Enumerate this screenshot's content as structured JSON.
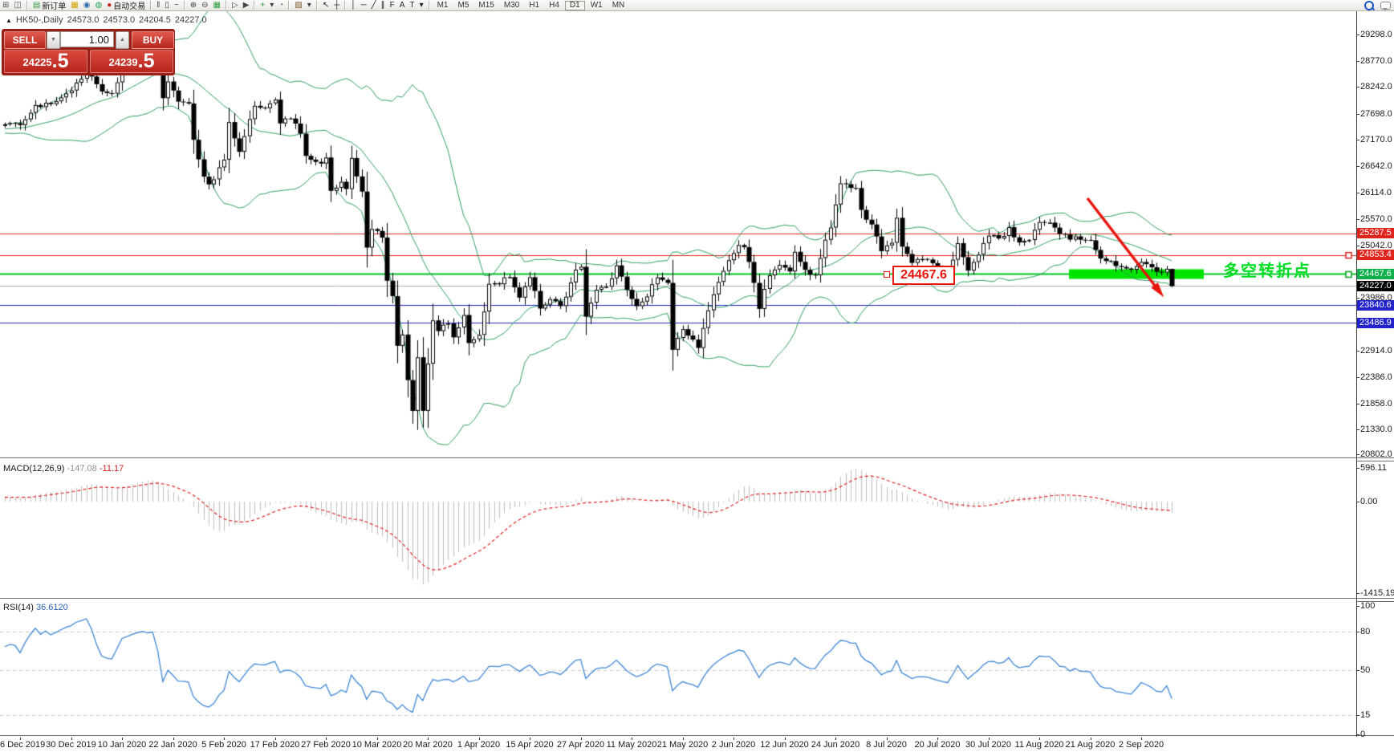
{
  "toolbar": {
    "timeframes": [
      "M1",
      "M5",
      "M15",
      "M30",
      "H1",
      "H4",
      "D1",
      "W1",
      "MN"
    ],
    "active_timeframe": "D1",
    "new_order_label": "新订单",
    "autotrading_label": "自动交易",
    "groups": [
      {
        "name": "file",
        "items": [
          {
            "icon": "new-chart-icon",
            "glyph": "⊞",
            "color": "#555555"
          },
          {
            "icon": "profiles-icon",
            "glyph": "◫",
            "color": "#555555"
          }
        ]
      },
      {
        "name": "trade",
        "items": [
          {
            "icon": "new-order-icon",
            "glyph": "▤",
            "color": "#2f9e44",
            "label_key": "new_order_label"
          },
          {
            "icon": "market-watch-icon",
            "glyph": "▦",
            "color": "#d9a400"
          },
          {
            "icon": "navigator-icon",
            "glyph": "◉",
            "color": "#2b6cb0"
          },
          {
            "icon": "signals-icon",
            "glyph": "◍",
            "color": "#23a455"
          },
          {
            "icon": "autotrading-icon",
            "glyph": "●",
            "color": "#cc2222",
            "label_key": "autotrading_label"
          }
        ]
      },
      {
        "name": "chart-mode",
        "items": [
          {
            "icon": "bar-chart-icon",
            "glyph": "‖",
            "color": "#444444"
          },
          {
            "icon": "candlestick-chart-icon",
            "glyph": "▯",
            "color": "#444444"
          },
          {
            "icon": "line-chart-icon",
            "glyph": "~",
            "color": "#444444"
          }
        ]
      },
      {
        "name": "zoom",
        "items": [
          {
            "icon": "zoom-in-icon",
            "glyph": "⊕",
            "color": "#444444"
          },
          {
            "icon": "zoom-out-icon",
            "glyph": "⊖",
            "color": "#444444"
          },
          {
            "icon": "tile-windows-icon",
            "glyph": "▦",
            "color": "#2f9e44"
          }
        ]
      },
      {
        "name": "shift",
        "items": [
          {
            "icon": "auto-scroll-icon",
            "glyph": "▷",
            "color": "#444444"
          },
          {
            "icon": "chart-shift-icon",
            "glyph": "▶",
            "color": "#444444"
          }
        ]
      },
      {
        "name": "indicators",
        "items": [
          {
            "icon": "add-indicator-icon",
            "glyph": "+",
            "color": "#1d9e3f"
          },
          {
            "icon": "indicator-caret-icon",
            "glyph": "▾",
            "color": "#444444"
          },
          {
            "icon": "period-clock-icon",
            "glyph": "◔",
            "color": "#666666"
          }
        ]
      },
      {
        "name": "templates",
        "items": [
          {
            "icon": "templates-icon",
            "glyph": "▨",
            "color": "#7a5c2e"
          },
          {
            "icon": "templates-caret-icon",
            "glyph": "▾",
            "color": "#444444"
          }
        ]
      },
      {
        "name": "pointer",
        "items": [
          {
            "icon": "cursor-icon",
            "glyph": "↖",
            "color": "#222222"
          },
          {
            "icon": "crosshair-icon",
            "glyph": "┼",
            "color": "#222222"
          }
        ]
      },
      {
        "name": "objects",
        "items": [
          {
            "icon": "vertical-line-icon",
            "glyph": "│",
            "color": "#222222"
          },
          {
            "icon": "horizontal-line-icon",
            "glyph": "─",
            "color": "#222222"
          },
          {
            "icon": "trendline-icon",
            "glyph": "╱",
            "color": "#222222"
          },
          {
            "icon": "equidistant-channel-icon",
            "glyph": "∥",
            "color": "#222222"
          },
          {
            "icon": "fibonacci-icon",
            "glyph": "F",
            "color": "#222222"
          },
          {
            "icon": "text-icon",
            "glyph": "A",
            "color": "#222222"
          },
          {
            "icon": "text-label-icon",
            "glyph": "T",
            "color": "#222222"
          },
          {
            "icon": "shapes-caret-icon",
            "glyph": "▾",
            "color": "#222222"
          }
        ]
      }
    ],
    "right_icons": [
      {
        "icon": "search-icon"
      },
      {
        "icon": "chat-icon"
      }
    ]
  },
  "chart": {
    "collapse_icon": "▲",
    "symbol_title": "HK50-,Daily",
    "ohlc": {
      "open": "24573.0",
      "high": "24573.0",
      "low": "24204.5",
      "close": "24227.0"
    },
    "trade_panel": {
      "sell_label": "SELL",
      "buy_label": "BUY",
      "volume": "1.00",
      "spinner_up": "▲",
      "spinner_down": "▼",
      "sell_price": "24225",
      "sell_price_big": ".5",
      "buy_price": "24239",
      "buy_price_big": ".5"
    },
    "price_axis": {
      "ticks": [
        "29298.0",
        "28770.0",
        "28242.0",
        "27698.0",
        "27170.0",
        "26642.0",
        "26114.0",
        "25570.0",
        "25042.0",
        "23986.0",
        "22914.0",
        "22386.0",
        "21858.0",
        "21330.0",
        "20802.0"
      ],
      "tags": [
        {
          "label": "25287.5",
          "color": "#df241c"
        },
        {
          "label": "24853.4",
          "color": "#df241c"
        },
        {
          "label": "24467.6",
          "color": "#0faf4d"
        },
        {
          "label": "24227.0",
          "color": "#000000"
        },
        {
          "label": "23840.6",
          "color": "#2222cc"
        },
        {
          "label": "23486.9",
          "color": "#2222cc"
        }
      ]
    },
    "time_axis": [
      "6 Dec 2019",
      "30 Dec 2019",
      "10 Jan 2020",
      "22 Jan 2020",
      "5 Feb 2020",
      "17 Feb 2020",
      "27 Feb 2020",
      "10 Mar 2020",
      "20 Mar 2020",
      "1 Apr 2020",
      "15 Apr 2020",
      "27 Apr 2020",
      "11 May 2020",
      "21 May 2020",
      "2 Jun 2020",
      "12 Jun 2020",
      "24 Jun 2020",
      "8 Jul 2020",
      "20 Jul 2020",
      "30 Jul 2020",
      "11 Aug 2020",
      "21 Aug 2020",
      "2 Sep 2020"
    ],
    "callout": {
      "text": "24467.6",
      "color": "#e8150d"
    },
    "pivot_annotation": {
      "text": "多空转折点",
      "color": "#00dd22"
    }
  },
  "indicators": {
    "macd": {
      "label": "MACD(12,26,9)",
      "value": "-147.08",
      "signal_value": "-11.17",
      "scale_max": "596.11",
      "scale_zero": "0.00",
      "scale_min": "-1415.19",
      "histogram_color": "#bdbdbd",
      "signal_color": "#e02020",
      "params": {
        "fast": 12,
        "slow": 26,
        "signal": 9
      }
    },
    "rsi": {
      "label": "RSI(14)",
      "value": "36.6120",
      "period": 14,
      "line_color": "#3e86d6",
      "levels": [
        "100",
        "80",
        "50",
        "15",
        "0"
      ],
      "dashed_levels": [
        80,
        50,
        15
      ]
    }
  },
  "chart_data": {
    "type": "candlestick",
    "symbol": "HK50",
    "timeframe": "Daily",
    "title": "HK50-,Daily 24573.0 24573.0 24204.5 24227.0",
    "price_range": {
      "top": 29298.0,
      "bottom": 20802.0
    },
    "bars_total": 230,
    "last_bar": {
      "open": 24573.0,
      "high": 24573.0,
      "low": 24204.5,
      "close": 24227.0
    },
    "close_waypoints": [
      [
        -40,
        26950
      ],
      [
        -25,
        27300
      ],
      [
        -10,
        27380
      ],
      [
        0,
        27450
      ],
      [
        3,
        27510
      ],
      [
        6,
        27850
      ],
      [
        10,
        27950
      ],
      [
        13,
        28190
      ],
      [
        16,
        28540
      ],
      [
        19,
        28180
      ],
      [
        21,
        28090
      ],
      [
        23,
        28640
      ],
      [
        26,
        28950
      ],
      [
        29,
        29000
      ],
      [
        30,
        28800
      ],
      [
        31,
        27990
      ],
      [
        32,
        28340
      ],
      [
        34,
        27910
      ],
      [
        36,
        27950
      ],
      [
        37,
        27160
      ],
      [
        39,
        26450
      ],
      [
        40,
        26310
      ],
      [
        41,
        26360
      ],
      [
        43,
        26790
      ],
      [
        44,
        27490
      ],
      [
        46,
        26960
      ],
      [
        48,
        27580
      ],
      [
        49,
        27820
      ],
      [
        51,
        27820
      ],
      [
        53,
        27960
      ],
      [
        54,
        27530
      ],
      [
        56,
        27610
      ],
      [
        58,
        27310
      ],
      [
        59,
        26820
      ],
      [
        61,
        26700
      ],
      [
        63,
        26780
      ],
      [
        64,
        26130
      ],
      [
        66,
        26290
      ],
      [
        67,
        26220
      ],
      [
        68,
        26770
      ],
      [
        70,
        26150
      ],
      [
        71,
        25040
      ],
      [
        72,
        25390
      ],
      [
        74,
        25230
      ],
      [
        75,
        24310
      ],
      [
        76,
        24030
      ],
      [
        77,
        23060
      ],
      [
        78,
        23260
      ],
      [
        79,
        22290
      ],
      [
        80,
        21710
      ],
      [
        81,
        22800
      ],
      [
        82,
        21700
      ],
      [
        83,
        22660
      ],
      [
        84,
        23530
      ],
      [
        85,
        23350
      ],
      [
        87,
        23480
      ],
      [
        88,
        23180
      ],
      [
        90,
        23600
      ],
      [
        91,
        23090
      ],
      [
        93,
        23240
      ],
      [
        95,
        24250
      ],
      [
        97,
        24300
      ],
      [
        99,
        24435
      ],
      [
        101,
        24010
      ],
      [
        103,
        24380
      ],
      [
        105,
        23790
      ],
      [
        107,
        23980
      ],
      [
        109,
        23830
      ],
      [
        111,
        24280
      ],
      [
        112,
        24580
      ],
      [
        113,
        24640
      ],
      [
        114,
        23610
      ],
      [
        116,
        24140
      ],
      [
        118,
        24230
      ],
      [
        120,
        24600
      ],
      [
        122,
        24180
      ],
      [
        124,
        23830
      ],
      [
        126,
        24060
      ],
      [
        128,
        24400
      ],
      [
        130,
        24280
      ],
      [
        131,
        22930
      ],
      [
        133,
        23380
      ],
      [
        135,
        23130
      ],
      [
        136,
        22960
      ],
      [
        138,
        23730
      ],
      [
        140,
        24330
      ],
      [
        142,
        24770
      ],
      [
        144,
        25060
      ],
      [
        145,
        25050
      ],
      [
        147,
        24300
      ],
      [
        148,
        23780
      ],
      [
        150,
        24480
      ],
      [
        152,
        24640
      ],
      [
        154,
        24510
      ],
      [
        155,
        24910
      ],
      [
        157,
        24550
      ],
      [
        159,
        24430
      ],
      [
        161,
        25120
      ],
      [
        162,
        25370
      ],
      [
        164,
        26340
      ],
      [
        165,
        26290
      ],
      [
        167,
        26210
      ],
      [
        168,
        25730
      ],
      [
        170,
        25480
      ],
      [
        172,
        24970
      ],
      [
        174,
        25060
      ],
      [
        175,
        25640
      ],
      [
        176,
        25060
      ],
      [
        178,
        24710
      ],
      [
        180,
        24770
      ],
      [
        182,
        24710
      ],
      [
        183,
        24600
      ],
      [
        185,
        24460
      ],
      [
        187,
        25100
      ],
      [
        189,
        24530
      ],
      [
        191,
        24890
      ],
      [
        193,
        25240
      ],
      [
        195,
        25180
      ],
      [
        197,
        25370
      ],
      [
        199,
        25080
      ],
      [
        201,
        25110
      ],
      [
        203,
        25550
      ],
      [
        205,
        25490
      ],
      [
        207,
        25280
      ],
      [
        209,
        25180
      ],
      [
        211,
        25190
      ],
      [
        213,
        25120
      ],
      [
        215,
        24820
      ],
      [
        217,
        24700
      ],
      [
        219,
        24590
      ],
      [
        221,
        24580
      ],
      [
        223,
        24710
      ],
      [
        225,
        24570
      ],
      [
        227,
        24500
      ],
      [
        228,
        24573
      ],
      [
        229,
        24227
      ]
    ],
    "bollinger": {
      "period": 20,
      "deviation": 2,
      "color": "#2e9e5f"
    },
    "horizontal_lines": [
      {
        "price": 25287.5,
        "color": "#df241c",
        "width": 1
      },
      {
        "price": 24853.4,
        "color": "#df241c",
        "width": 1
      },
      {
        "price": 24467.6,
        "color": "#00c424",
        "width": 2
      },
      {
        "price": 24227.0,
        "color": "#a8a8a8",
        "width": 1
      },
      {
        "price": 23840.6,
        "color": "#2222cc",
        "width": 1
      },
      {
        "price": 23486.9,
        "color": "#2222cc",
        "width": 1
      }
    ],
    "highlight_bar": {
      "price": 24467.6,
      "color": "#00e400"
    },
    "trend_arrow": {
      "color": "#e8150d"
    },
    "macd_scale": {
      "max": 596.11,
      "zero": 0.0,
      "min": -1415.19
    },
    "rsi_scale": {
      "max": 100,
      "min": 0,
      "levels": [
        80,
        50,
        15
      ]
    }
  }
}
